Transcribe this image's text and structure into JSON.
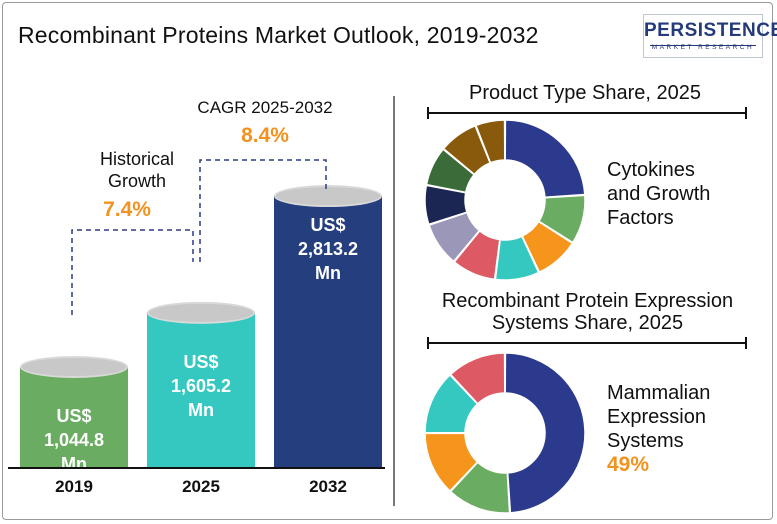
{
  "title": "Recombinant Proteins Market Outlook, 2019-2032",
  "logo": {
    "main": "PERSISTENCE",
    "sub": "MARKET RESEARCH"
  },
  "historical": {
    "label_line1": "Historical",
    "label_line2": "Growth",
    "value": "7.4%"
  },
  "cagr": {
    "label": "CAGR 2025-2032",
    "value": "8.4%"
  },
  "chart_data": [
    {
      "type": "bar",
      "title": "",
      "categories": [
        "2019",
        "2025",
        "2032"
      ],
      "values": [
        1044.8,
        1605.2,
        2813.2
      ],
      "value_labels": [
        [
          "US$",
          "1,044.8",
          "Mn"
        ],
        [
          "US$",
          "1,605.2",
          "Mn"
        ],
        [
          "US$",
          "2,813.2",
          "Mn"
        ]
      ],
      "colors": [
        "#6aad62",
        "#35c8c0",
        "#253f7e"
      ],
      "ylim": [
        0,
        3000
      ],
      "grid": false
    },
    {
      "type": "pie",
      "title": "Product Type Share, 2025",
      "values": [
        24,
        10,
        9,
        9,
        9,
        9,
        8,
        8,
        8,
        6
      ],
      "colors": [
        "#2b3a8c",
        "#6aad62",
        "#f5951c",
        "#35c8c0",
        "#dd5a64",
        "#9b97b8",
        "#1b2752",
        "#3c6b3a",
        "#8a5a0c",
        "#8a5a0c"
      ],
      "highlight_label": [
        "Cytokines",
        "and Growth",
        "Factors"
      ]
    },
    {
      "type": "pie",
      "title_lines": [
        "Recombinant Protein Expression",
        "Systems Share, 2025"
      ],
      "values": [
        49,
        13,
        13,
        13,
        12
      ],
      "colors": [
        "#2b3a8c",
        "#6aad62",
        "#f5951c",
        "#35c8c0",
        "#dd5a64"
      ],
      "highlight_label": [
        "Mammalian",
        "Expression",
        "Systems"
      ],
      "highlight_value": "49%"
    }
  ]
}
